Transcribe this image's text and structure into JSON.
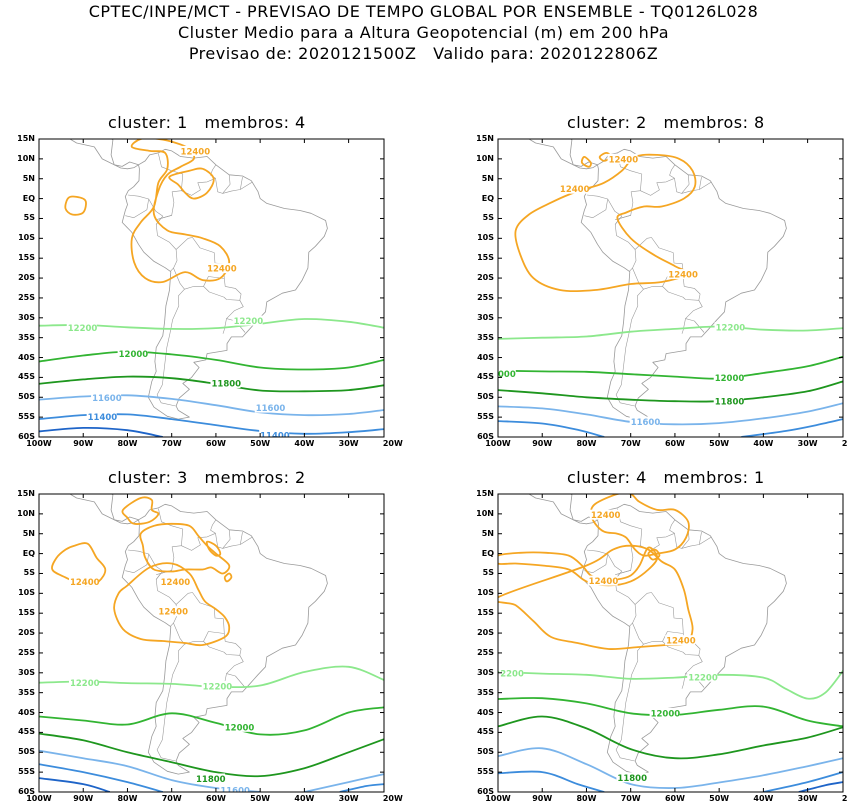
{
  "header": {
    "line1": "CPTEC/INPE/MCT - PREVISAO DE TEMPO GLOBAL POR ENSEMBLE - TQ0126L028",
    "line2": "Cluster Medio para a Altura Geopotencial (m) em 200 hPa",
    "line3": "Previsao de: 2020121500Z   Valido para: 2020122806Z"
  },
  "axes": {
    "lat_labels": [
      "15N",
      "10N",
      "5N",
      "EQ",
      "5S",
      "10S",
      "15S",
      "20S",
      "25S",
      "30S",
      "35S",
      "40S",
      "45S",
      "50S",
      "55S",
      "60S"
    ],
    "lon_labels": [
      "100W",
      "90W",
      "80W",
      "70W",
      "60W",
      "50W",
      "40W",
      "30W",
      "20W"
    ]
  },
  "colors": {
    "c12400": "#f5a623",
    "c12200": "#8ce88c",
    "c12000": "#32b432",
    "c11800": "#1e961e",
    "c11600": "#7ab4eb",
    "c11400": "#3c8cdc",
    "c11200": "#1e64c8",
    "coast": "#9a9a9a"
  },
  "panels": [
    {
      "title": "cluster: 1   membros: 4",
      "labels": [
        {
          "text": "12400",
          "color": "c12400"
        },
        {
          "text": "12400",
          "color": "c12400"
        },
        {
          "text": "12200",
          "color": "c12200"
        },
        {
          "text": "12200",
          "color": "c12200"
        },
        {
          "text": "12000",
          "color": "c12000"
        },
        {
          "text": "11800",
          "color": "c11800"
        },
        {
          "text": "11600",
          "color": "c11600"
        },
        {
          "text": "11600",
          "color": "c11600"
        },
        {
          "text": "11400",
          "color": "c11400"
        },
        {
          "text": "11400",
          "color": "c11400"
        }
      ]
    },
    {
      "title": "cluster: 2   membros: 8",
      "labels": [
        {
          "text": "12400",
          "color": "c12400"
        },
        {
          "text": "12400",
          "color": "c12400"
        },
        {
          "text": "12400",
          "color": "c12400"
        },
        {
          "text": "12200",
          "color": "c12200"
        },
        {
          "text": "000",
          "color": "c12000"
        },
        {
          "text": "12000",
          "color": "c12000"
        },
        {
          "text": "11800",
          "color": "c11800"
        },
        {
          "text": "11600",
          "color": "c11600"
        }
      ]
    },
    {
      "title": "cluster: 3   membros: 2",
      "labels": [
        {
          "text": "12400",
          "color": "c12400"
        },
        {
          "text": "12400",
          "color": "c12400"
        },
        {
          "text": "12400",
          "color": "c12400"
        },
        {
          "text": "12200",
          "color": "c12200"
        },
        {
          "text": "12200",
          "color": "c12200"
        },
        {
          "text": "12000",
          "color": "c12000"
        },
        {
          "text": "11800",
          "color": "c11800"
        },
        {
          "text": "11600",
          "color": "c11600"
        }
      ]
    },
    {
      "title": "cluster: 4   membros: 1",
      "labels": [
        {
          "text": "12400",
          "color": "c12400"
        },
        {
          "text": "12400",
          "color": "c12400"
        },
        {
          "text": "12400",
          "color": "c12400"
        },
        {
          "text": "2200",
          "color": "c12200"
        },
        {
          "text": "12200",
          "color": "c12200"
        },
        {
          "text": "12000",
          "color": "c12000"
        },
        {
          "text": "11800",
          "color": "c11800"
        }
      ]
    }
  ]
}
